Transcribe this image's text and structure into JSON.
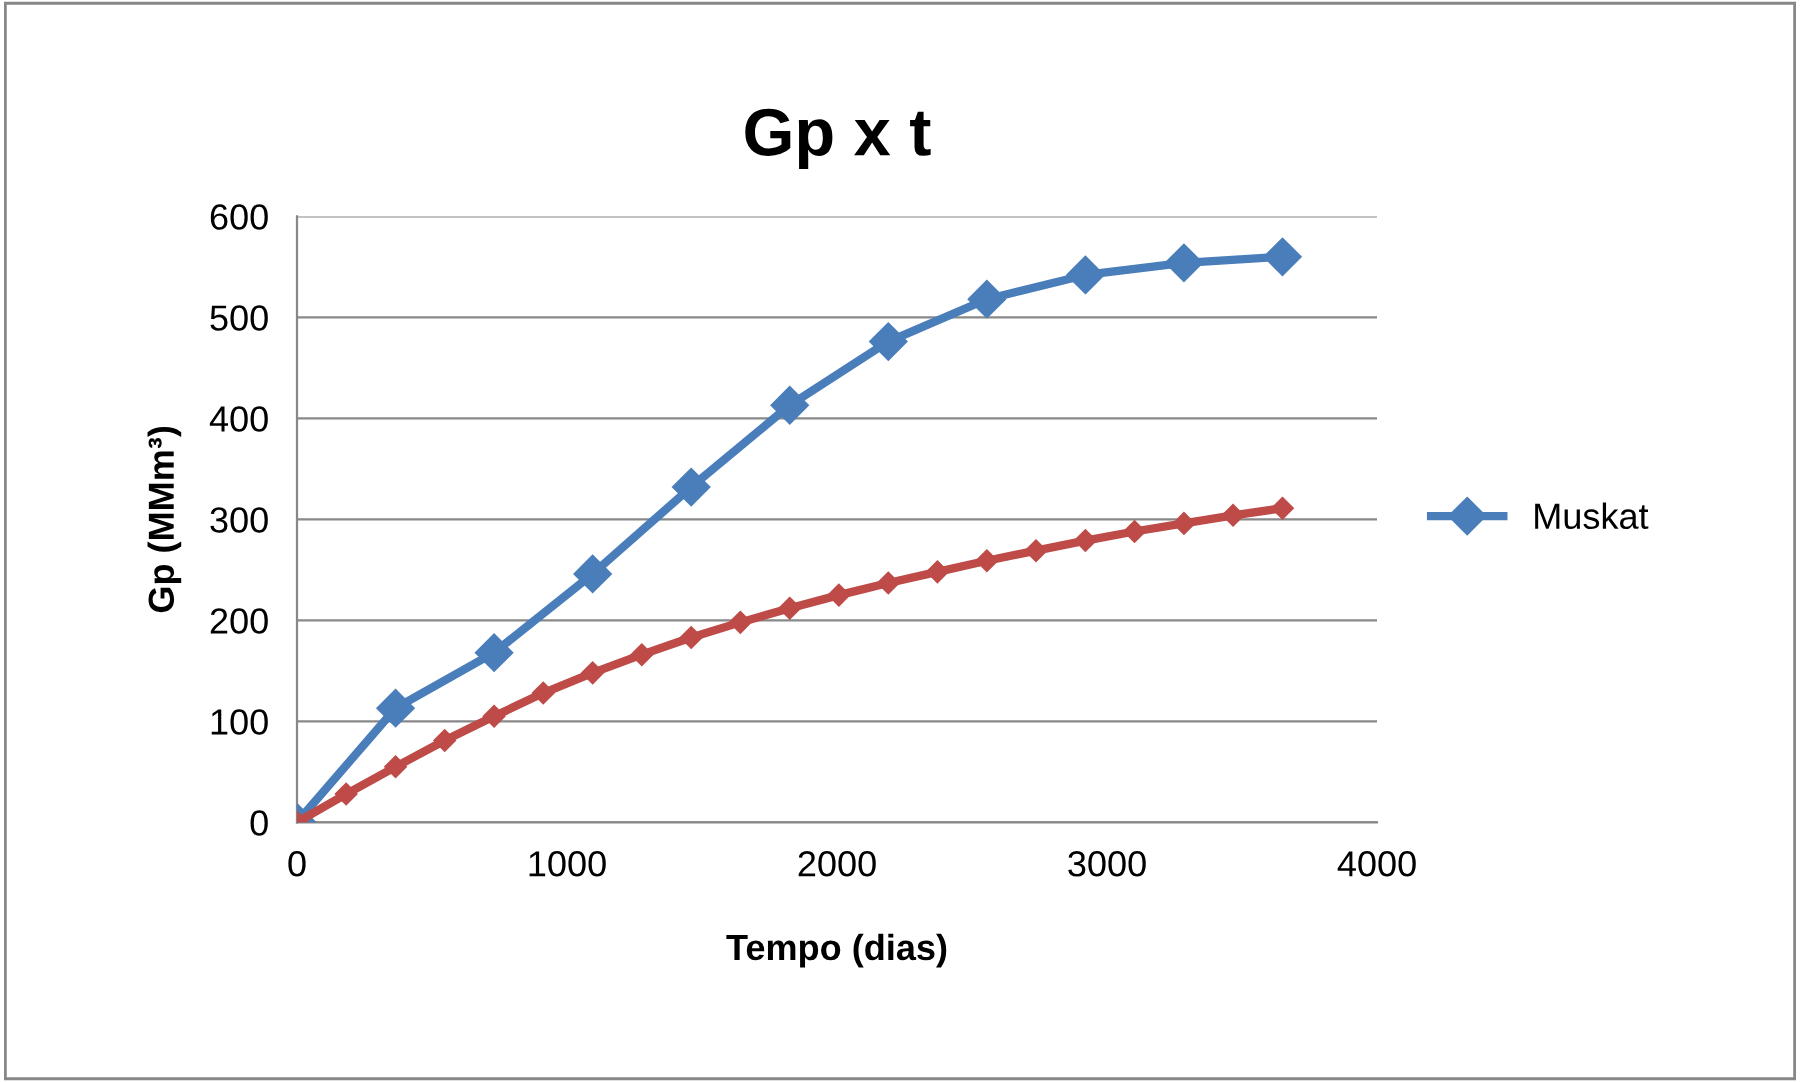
{
  "chart_data": {
    "type": "line",
    "title": "Gp x t",
    "xlabel": "Tempo (dias)",
    "ylabel": "Gp (MMm³)",
    "xlim": [
      0,
      4000
    ],
    "xticks": [
      0,
      1000,
      2000,
      3000,
      4000
    ],
    "ylim": [
      0,
      600
    ],
    "yticks": [
      0,
      100,
      200,
      300,
      400,
      500,
      600
    ],
    "grid": "y",
    "legend": "right",
    "series": [
      {
        "name": "Muskat",
        "color": "#4a7ebb",
        "marker": "diamond",
        "x": [
          0,
          365,
          730,
          1095,
          1460,
          1825,
          2190,
          2555,
          2920,
          3285,
          3650
        ],
        "values": [
          0,
          113,
          168,
          246,
          332,
          413,
          476,
          518,
          542,
          554,
          560
        ]
      },
      {
        "color": "#be4b48",
        "marker": "diamond",
        "x": [
          0,
          182,
          365,
          547,
          730,
          912,
          1095,
          1277,
          1460,
          1642,
          1825,
          2007,
          2190,
          2372,
          2555,
          2737,
          2920,
          3102,
          3285,
          3467,
          3650
        ],
        "values": [
          0,
          28,
          55,
          81,
          105,
          128,
          148,
          166,
          183,
          198,
          212,
          225,
          237,
          248,
          259,
          269,
          279,
          288,
          296,
          304,
          311
        ]
      }
    ]
  }
}
